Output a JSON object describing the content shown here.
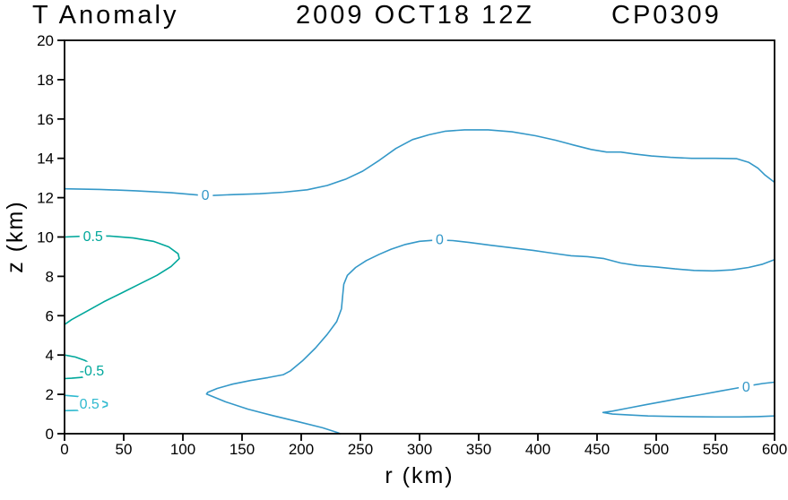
{
  "title": {
    "left": "T Anomaly",
    "center": "2009 OCT18 12Z",
    "right": "CP0309"
  },
  "colors": {
    "axis": "#000000",
    "zero_contour": "#3498c8",
    "pos_half_contour": "#00a79b",
    "neg_half_contour": "#00a79b",
    "low_half_contour": "#2fb9cf"
  },
  "chart_data": {
    "type": "contour",
    "title": "T Anomaly 2009 OCT18 12Z CP0309",
    "xlabel": "r (km)",
    "ylabel": "z (km)",
    "xlim": [
      0,
      600
    ],
    "ylim": [
      0,
      20
    ],
    "xticks": [
      0,
      50,
      100,
      150,
      200,
      250,
      300,
      350,
      400,
      450,
      500,
      550,
      600
    ],
    "yticks": [
      0,
      2,
      4,
      6,
      8,
      10,
      12,
      14,
      16,
      18,
      20
    ],
    "grid": false,
    "contours": [
      {
        "level": 0,
        "color": "#3498c8",
        "label": {
          "text": "0",
          "r": 119,
          "z": 12.12
        },
        "points": [
          [
            0,
            12.45
          ],
          [
            30,
            12.42
          ],
          [
            60,
            12.35
          ],
          [
            90,
            12.25
          ],
          [
            120,
            12.1
          ],
          [
            140,
            12.15
          ],
          [
            165,
            12.2
          ],
          [
            185,
            12.28
          ],
          [
            205,
            12.4
          ],
          [
            222,
            12.62
          ],
          [
            238,
            12.95
          ],
          [
            252,
            13.35
          ],
          [
            266,
            13.9
          ],
          [
            280,
            14.5
          ],
          [
            294,
            14.95
          ],
          [
            308,
            15.2
          ],
          [
            322,
            15.38
          ],
          [
            338,
            15.45
          ],
          [
            358,
            15.45
          ],
          [
            378,
            15.35
          ],
          [
            398,
            15.15
          ],
          [
            415,
            14.92
          ],
          [
            430,
            14.68
          ],
          [
            445,
            14.45
          ],
          [
            458,
            14.32
          ],
          [
            470,
            14.32
          ],
          [
            482,
            14.22
          ],
          [
            496,
            14.12
          ],
          [
            512,
            14.05
          ],
          [
            530,
            14.0
          ],
          [
            550,
            14.0
          ],
          [
            568,
            13.98
          ],
          [
            578,
            13.8
          ],
          [
            586,
            13.5
          ],
          [
            592,
            13.15
          ],
          [
            600,
            12.78
          ]
        ]
      },
      {
        "level": 0.5,
        "color": "#00a79b",
        "label": {
          "text": "0.5",
          "r": 24,
          "z": 10.02
        },
        "points": [
          [
            0,
            10.0
          ],
          [
            18,
            10.05
          ],
          [
            38,
            10.05
          ],
          [
            58,
            9.95
          ],
          [
            75,
            9.78
          ],
          [
            88,
            9.5
          ],
          [
            96,
            9.15
          ],
          [
            97,
            8.9
          ],
          [
            90,
            8.5
          ],
          [
            78,
            8.05
          ],
          [
            63,
            7.6
          ],
          [
            48,
            7.15
          ],
          [
            33,
            6.7
          ],
          [
            18,
            6.2
          ],
          [
            6,
            5.8
          ],
          [
            0,
            5.55
          ]
        ]
      },
      {
        "level": 0,
        "color": "#3498c8",
        "label": {
          "text": "0",
          "r": 317,
          "z": 9.87
        },
        "points": [
          [
            600,
            8.85
          ],
          [
            590,
            8.62
          ],
          [
            578,
            8.45
          ],
          [
            564,
            8.33
          ],
          [
            548,
            8.28
          ],
          [
            532,
            8.3
          ],
          [
            516,
            8.38
          ],
          [
            500,
            8.48
          ],
          [
            484,
            8.55
          ],
          [
            470,
            8.68
          ],
          [
            456,
            8.9
          ],
          [
            442,
            9.0
          ],
          [
            428,
            9.05
          ],
          [
            412,
            9.18
          ],
          [
            396,
            9.32
          ],
          [
            378,
            9.45
          ],
          [
            360,
            9.58
          ],
          [
            342,
            9.72
          ],
          [
            328,
            9.82
          ],
          [
            315,
            9.85
          ],
          [
            300,
            9.78
          ],
          [
            288,
            9.62
          ],
          [
            276,
            9.38
          ],
          [
            266,
            9.12
          ],
          [
            255,
            8.8
          ],
          [
            246,
            8.45
          ],
          [
            239,
            8.05
          ],
          [
            236,
            7.6
          ],
          [
            235,
            7.0
          ],
          [
            234,
            6.35
          ],
          [
            230,
            5.7
          ],
          [
            222,
            5.05
          ],
          [
            212,
            4.35
          ],
          [
            201,
            3.7
          ],
          [
            191,
            3.2
          ],
          [
            185,
            3.0
          ],
          [
            172,
            2.85
          ],
          [
            157,
            2.7
          ],
          [
            142,
            2.52
          ],
          [
            129,
            2.3
          ],
          [
            121,
            2.1
          ],
          [
            120,
            2.02
          ],
          [
            136,
            1.62
          ],
          [
            155,
            1.25
          ],
          [
            176,
            0.92
          ],
          [
            198,
            0.6
          ],
          [
            218,
            0.3
          ],
          [
            231,
            0.05
          ],
          [
            233,
            0
          ]
        ]
      },
      {
        "level": 0,
        "color": "#3498c8",
        "label": {
          "text": "0",
          "r": 576,
          "z": 2.38
        },
        "points": [
          [
            600,
            2.62
          ],
          [
            590,
            2.55
          ],
          [
            580,
            2.45
          ],
          [
            568,
            2.32
          ],
          [
            554,
            2.17
          ],
          [
            539,
            2.0
          ],
          [
            523,
            1.83
          ],
          [
            507,
            1.65
          ],
          [
            491,
            1.47
          ],
          [
            476,
            1.3
          ],
          [
            463,
            1.15
          ],
          [
            455,
            1.08
          ],
          [
            463,
            1.0
          ],
          [
            477,
            0.95
          ],
          [
            493,
            0.9
          ],
          [
            511,
            0.88
          ],
          [
            530,
            0.86
          ],
          [
            550,
            0.85
          ],
          [
            570,
            0.85
          ],
          [
            586,
            0.87
          ],
          [
            600,
            0.9
          ]
        ]
      },
      {
        "level": -0.5,
        "color": "#00a79b",
        "label": {
          "text": "-0.5",
          "r": 23,
          "z": 3.2
        },
        "points": [
          [
            0,
            4.0
          ],
          [
            9,
            3.9
          ],
          [
            17,
            3.73
          ],
          [
            23,
            3.52
          ],
          [
            26,
            3.3
          ],
          [
            26,
            3.1
          ],
          [
            22,
            2.95
          ],
          [
            14,
            2.86
          ],
          [
            6,
            2.82
          ],
          [
            0,
            2.8
          ]
        ]
      },
      {
        "level": 0.5,
        "color": "#2fb9cf",
        "label": {
          "text": "0.5",
          "r": 21,
          "z": 1.5
        },
        "points": [
          [
            0,
            1.95
          ],
          [
            10,
            1.9
          ],
          [
            21,
            1.82
          ],
          [
            30,
            1.7
          ],
          [
            36,
            1.56
          ],
          [
            36,
            1.42
          ],
          [
            31,
            1.31
          ],
          [
            22,
            1.24
          ],
          [
            12,
            1.19
          ],
          [
            0,
            1.17
          ]
        ]
      }
    ]
  }
}
